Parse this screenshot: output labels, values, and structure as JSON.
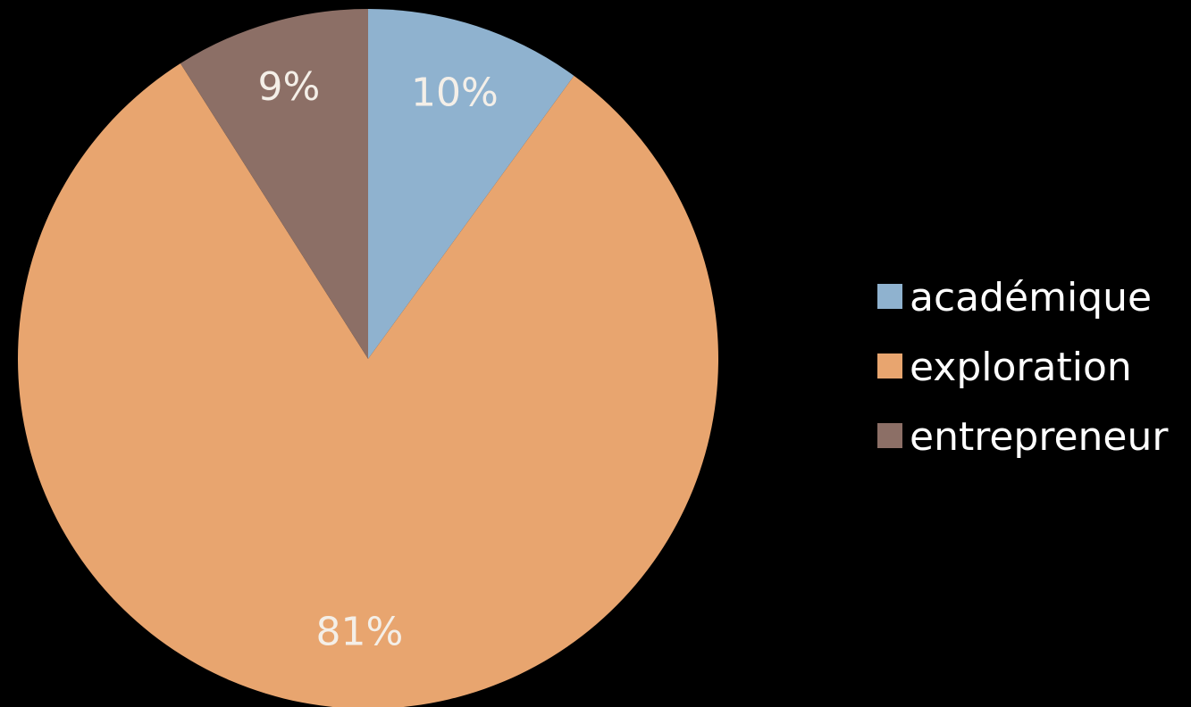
{
  "chart_data": {
    "type": "pie",
    "categories": [
      "académique",
      "exploration",
      "entrepreneur"
    ],
    "values": [
      10,
      81,
      9
    ],
    "labels": [
      "10%",
      "81%",
      "9%"
    ],
    "colors": [
      "#8fb2cf",
      "#e8a56f",
      "#8c6f66"
    ],
    "legend_position": "right",
    "start": "top, clockwise"
  }
}
